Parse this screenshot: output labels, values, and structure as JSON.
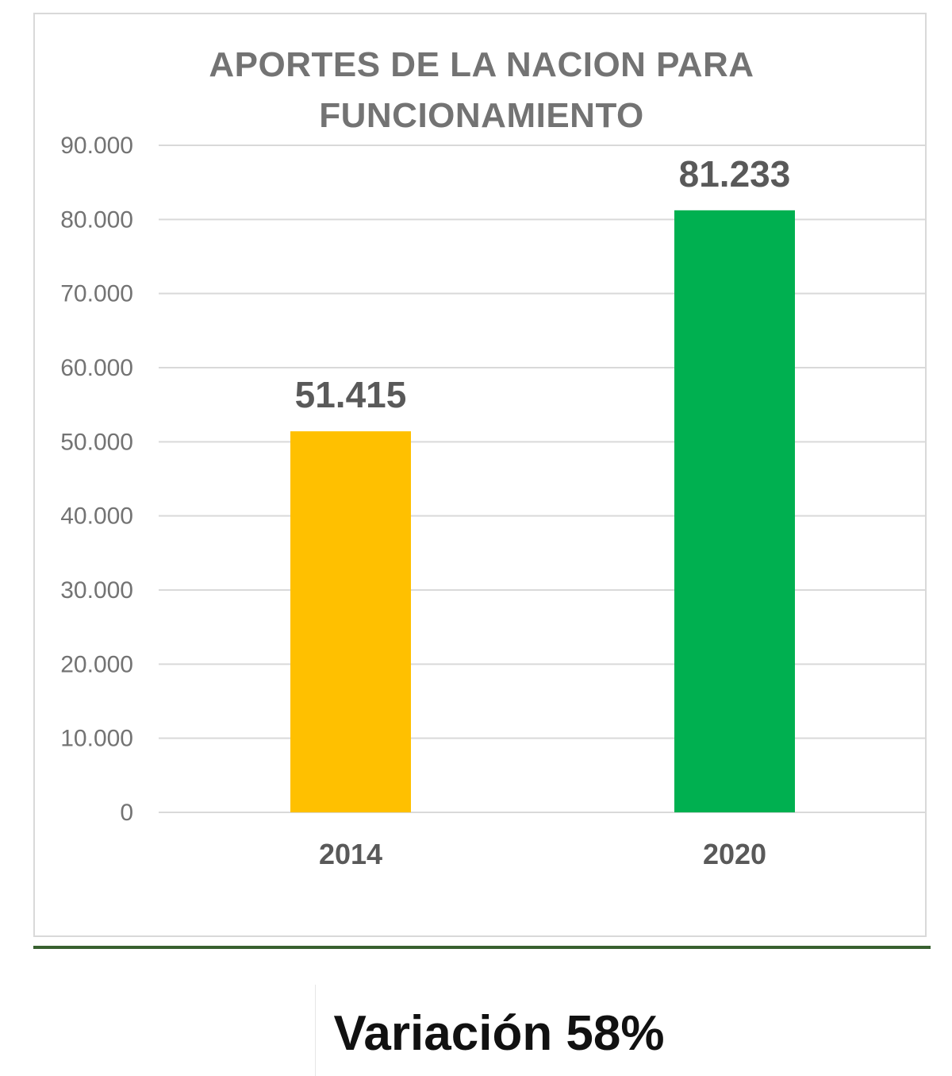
{
  "chart_data": {
    "type": "bar",
    "title": "APORTES DE LA NACION PARA FUNCIONAMIENTO",
    "title_lines": [
      "APORTES DE LA NACION PARA",
      "FUNCIONAMIENTO"
    ],
    "categories": [
      "2014",
      "2020"
    ],
    "values": [
      51415,
      81233
    ],
    "data_labels": [
      "51.415",
      "81.233"
    ],
    "bar_colors": [
      "#ffc000",
      "#00b050"
    ],
    "ylim": [
      0,
      90000
    ],
    "yticks": [
      0,
      10000,
      20000,
      30000,
      40000,
      50000,
      60000,
      70000,
      80000,
      90000
    ],
    "ytick_labels": [
      "0",
      "10.000",
      "20.000",
      "30.000",
      "40.000",
      "50.000",
      "60.000",
      "70.000",
      "80.000",
      "90.000"
    ],
    "xlabel": "",
    "ylabel": "",
    "grid": true,
    "legend": "none"
  },
  "footer": {
    "variation_text": "Variación 58%"
  },
  "colors": {
    "title": "#737373",
    "tick_label": "#737373",
    "data_label": "#595959",
    "category_label": "#595959",
    "gridline": "#d9d9d9",
    "divider": "#38602f"
  }
}
